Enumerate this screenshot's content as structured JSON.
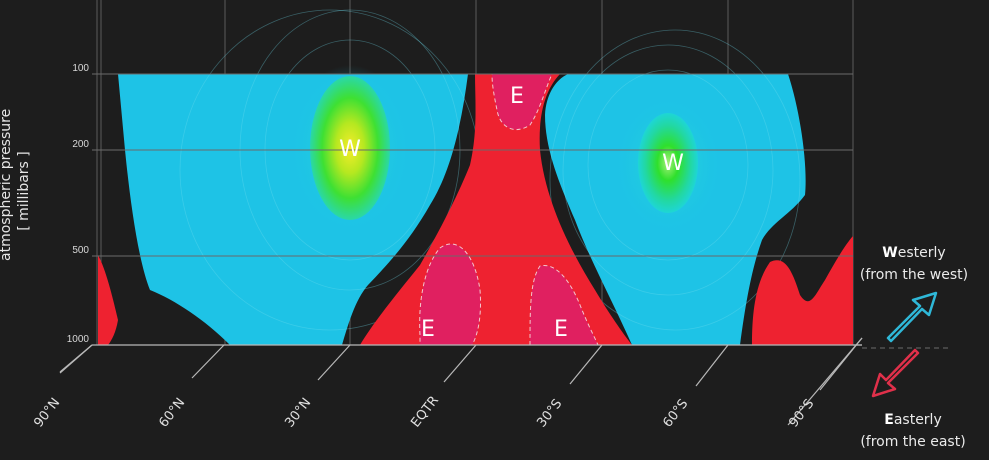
{
  "y_axis": {
    "title": "atmospheric pressure",
    "unit": "[ millibars ]",
    "ticks": [
      "100",
      "200",
      "500",
      "1000"
    ]
  },
  "x_axis": {
    "ticks": [
      "90°N",
      "60°N",
      "30°N",
      "EQTR",
      "30°S",
      "60°S",
      "90°S"
    ]
  },
  "region_labels": {
    "westerly_north": "W",
    "westerly_south": "W",
    "easterly_top": "E",
    "easterly_low_left": "E",
    "easterly_low_right": "E"
  },
  "legend": {
    "westerly_initial": "W",
    "westerly_rest": "esterly",
    "westerly_note": "(from the west)",
    "easterly_initial": "E",
    "easterly_rest": "asterly",
    "easterly_note": "(from the east)"
  },
  "colors": {
    "background": "#1d1d1d",
    "westerly": "#1ec3e6",
    "westerly_core": "#3ee033",
    "westerly_peak": "#f0f020",
    "easterly": "#ee2230",
    "easterly_core": "#e02060",
    "westerly_arrow": "#2fb8d8",
    "easterly_arrow": "#e0304a"
  }
}
